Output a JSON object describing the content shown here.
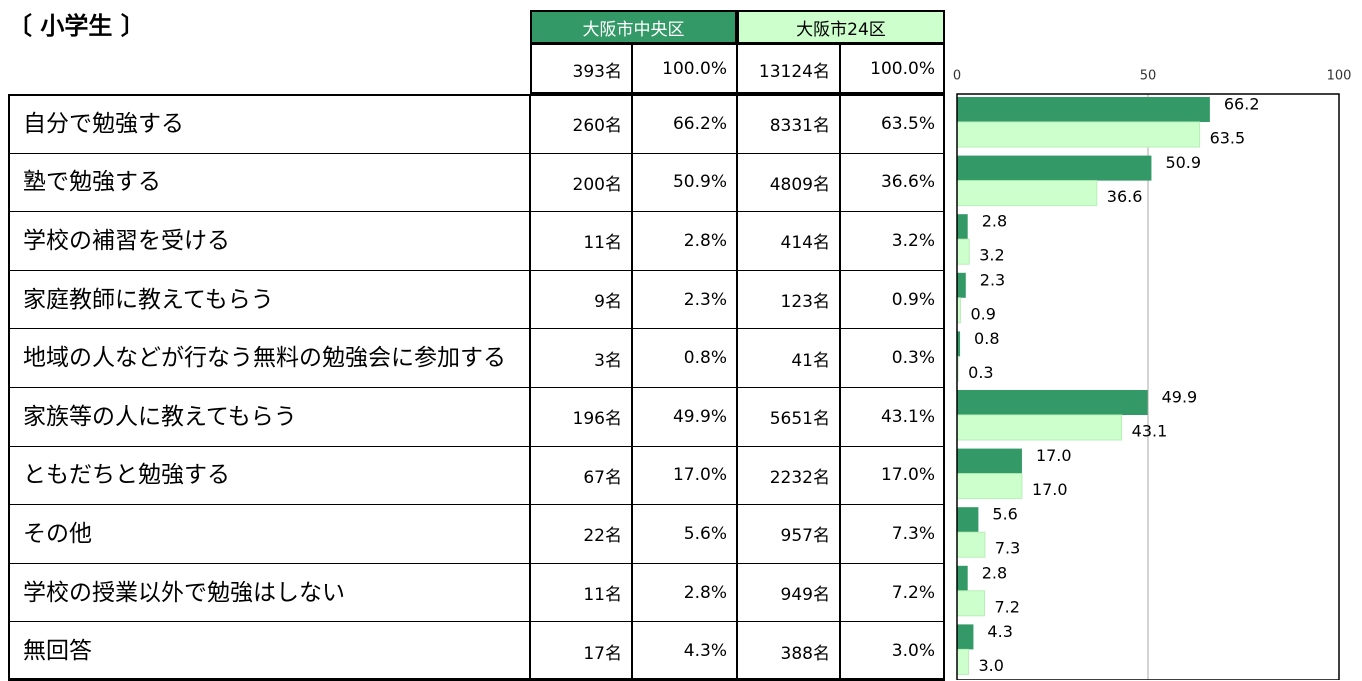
{
  "header": {
    "title": "〔 小学生 〕"
  },
  "table": {
    "columns": [
      "大阪市中央区",
      "大阪市24区"
    ],
    "totals": [
      "393名",
      "100.0%",
      "13124名",
      "100.0%"
    ],
    "rows": [
      [
        "自分で勉強する",
        "260名",
        "66.2%",
        "8331名",
        "63.5%"
      ],
      [
        "塾で勉強する",
        "200名",
        "50.9%",
        "4809名",
        "36.6%"
      ],
      [
        "学校の補習を受ける",
        "11名",
        "2.8%",
        "414名",
        "3.2%"
      ],
      [
        "家庭教師に教えてもらう",
        "9名",
        "2.3%",
        "123名",
        "0.9%"
      ],
      [
        "地域の人などが行なう無料の勉強会に参加する",
        "3名",
        "0.8%",
        "41名",
        "0.3%"
      ],
      [
        "家族等の人に教えてもらう",
        "196名",
        "49.9%",
        "5651名",
        "43.1%"
      ],
      [
        "ともだちと勉強する",
        "67名",
        "17.0%",
        "2232名",
        "17.0%"
      ],
      [
        "その他",
        "22名",
        "5.6%",
        "957名",
        "7.3%"
      ],
      [
        "学校の授業以外で勉強はしない",
        "11名",
        "2.8%",
        "949名",
        "7.2%"
      ],
      [
        "無回答",
        "17名",
        "4.3%",
        "388名",
        "3.0%"
      ]
    ]
  },
  "chart_data": {
    "type": "barh",
    "xlim": [
      0,
      100
    ],
    "xticks": [
      0,
      50,
      100
    ],
    "grid": true,
    "series": [
      {
        "color": "#339966",
        "values": [
          66.2,
          50.9,
          2.8,
          2.3,
          0.8,
          49.9,
          17.0,
          5.6,
          2.8,
          4.3
        ],
        "value_labels": [
          "66.2",
          "50.9",
          "2.8",
          "2.3",
          "0.8",
          "49.9",
          "17.0",
          "5.6",
          "2.8",
          "4.3"
        ]
      },
      {
        "color": "#ccffcc",
        "values": [
          63.5,
          36.6,
          3.2,
          0.9,
          0.3,
          43.1,
          17.0,
          7.3,
          7.2,
          3.0
        ],
        "value_labels": [
          "63.5",
          "36.6",
          "3.2",
          "0.9",
          "0.3",
          "43.1",
          "17.0",
          "7.3",
          "7.2",
          "3.0"
        ]
      }
    ]
  }
}
